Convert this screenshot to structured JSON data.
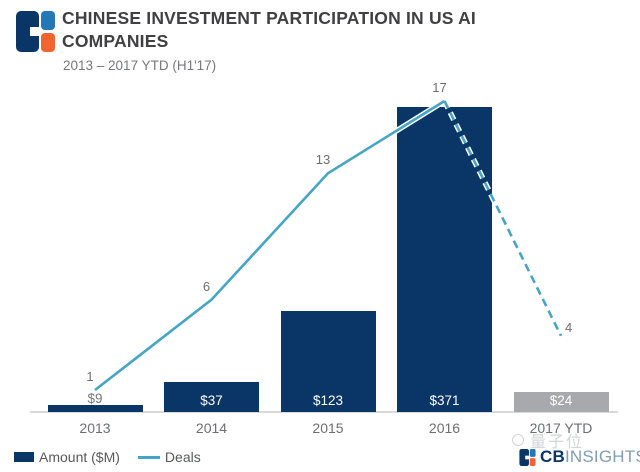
{
  "header": {
    "title_lines": [
      "CHINESE INVESTMENT PARTICIPATION IN US AI",
      "COMPANIES"
    ],
    "subtitle": "2013 – 2017 YTD (H1'17)"
  },
  "chart_data": {
    "type": "bar",
    "categories": [
      "2013",
      "2014",
      "2015",
      "2016",
      "2017 YTD"
    ],
    "series": [
      {
        "name": "Amount ($M)",
        "type": "bar",
        "values": [
          9,
          37,
          123,
          371,
          24
        ],
        "labels": [
          "$9",
          "$37",
          "$123",
          "$371",
          "$24"
        ],
        "bar_colors": [
          "#0a3567",
          "#0a3567",
          "#0a3567",
          "#0a3567",
          "#a7a9ac"
        ]
      },
      {
        "name": "Deals",
        "type": "line",
        "values": [
          1,
          6,
          13,
          17,
          4
        ],
        "labels": [
          "1",
          "6",
          "13",
          "17",
          "4"
        ],
        "dashed_segment_start_index": 3,
        "color": "#46a5c5"
      }
    ],
    "title": "CHINESE INVESTMENT PARTICIPATION IN US AI COMPANIES",
    "subtitle": "2013 – 2017 YTD (H1'17)",
    "xlabel": "",
    "ylabel": "",
    "grid": false,
    "legend_position": "bottom-left"
  },
  "branding": {
    "cb": "CB",
    "insights": "INSIGHTS"
  },
  "watermark": {
    "text": "量子位"
  },
  "colors": {
    "bar_navy": "#0a3567",
    "bar_gray": "#a7a9ac",
    "line_teal": "#46a5c5",
    "label_gray": "#6d6e71",
    "title_dark": "#404042",
    "axis_line": "#d8d9da",
    "logo_blue": "#2478b6",
    "logo_orange": "#f2642f",
    "insights_text": "#7f9db4"
  }
}
